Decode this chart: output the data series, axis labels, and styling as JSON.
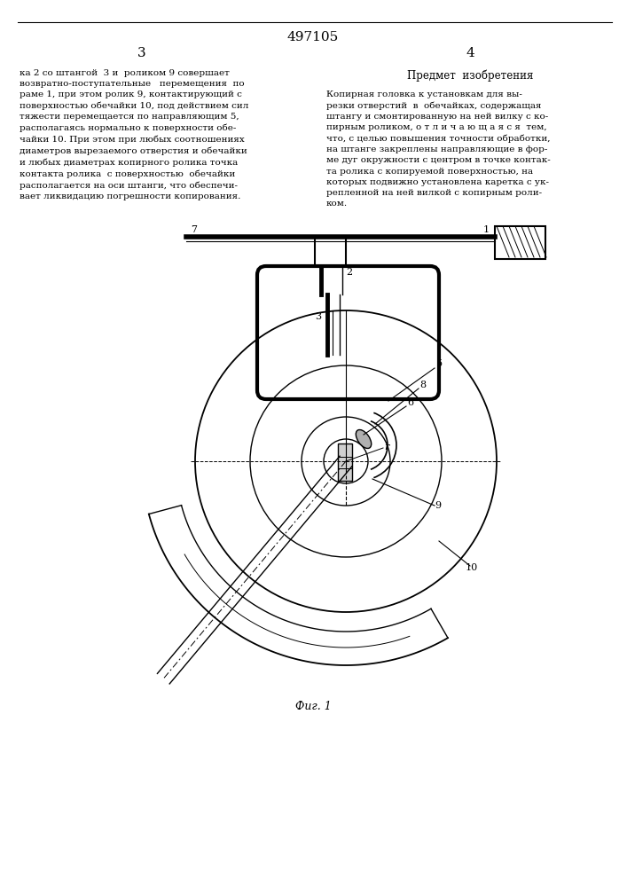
{
  "title_number": "497105",
  "page_left": "3",
  "page_right": "4",
  "left_text": "ка 2 со штангой  3 и  роликом 9 совершает\nвозвратно-поступательные   перемещения  по\nраме 1, при этом ролик 9, контактирующий с\nповерхностью обечайки 10, под действием сил\nтяжести перемещается по направляющим 5,\nрасполагаясь нормально к поверхности обе-\nчайки 10. При этом при любых соотношениях\nдиаметров вырезаемого отверстия и обечайки\nи любых диаметрах копирного ролика точка\nконтакта ролика  с поверхностью  обечайки\nрасполагается на оси штанги, что обеспечи-\nвает ликвидацию погрешности копирования.",
  "right_heading": "Предмет  изобретения",
  "right_text": "Копирная головка к установкам для вы-\nрезки отверстий  в  обечайках, содержащая\nштангу и смонтированную на ней вилку с ко-\nпирным роликом, о т л и ч а ю щ а я с я  тем,\nчто, с целью повышения точности обработки,\nна штанге закреплены направляющие в фор-\nме дуг окружности с центром в точке контак-\nта ролика с копируемой поверхностью, на\nкоторых подвижно установлена каретка с ук-\nрепленной на ней вилкой с копирным роли-\nком.",
  "fig_caption": "Фиг. 1",
  "bg_color": "#ffffff",
  "line_color": "#000000",
  "text_color": "#000000"
}
